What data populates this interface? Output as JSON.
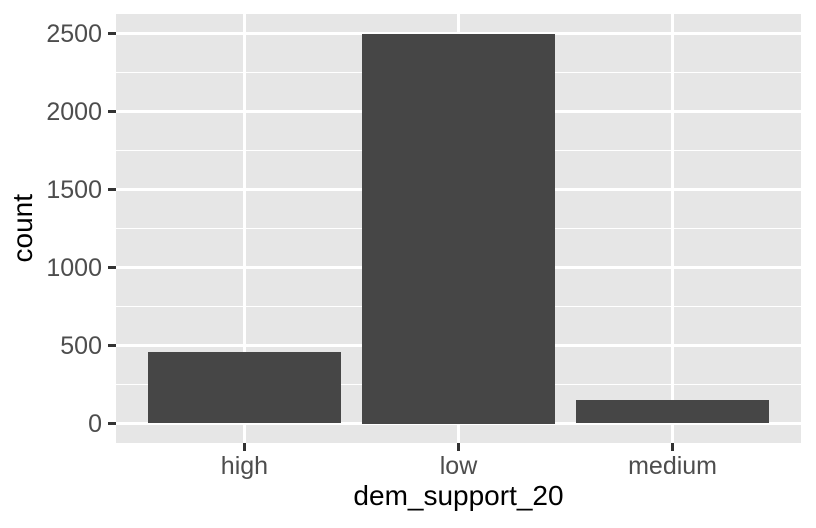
{
  "chart_data": {
    "type": "bar",
    "title": "",
    "categories": [
      "high",
      "low",
      "medium"
    ],
    "values": [
      460,
      2500,
      150
    ],
    "xlabel": "dem_support_20",
    "ylabel": "count",
    "ylim": [
      0,
      2500
    ],
    "yticks": [
      0,
      500,
      1000,
      1500,
      2000,
      2500
    ],
    "ytick_labels": [
      "0",
      "500",
      "1000",
      "1500",
      "2000",
      "2500"
    ],
    "minor_gridline_values": [
      250,
      750,
      1250,
      1750,
      2250
    ],
    "grid": "white major and minor horizontal gridlines, white vertical gridlines at category centers, on grey panel",
    "legend_position": "none",
    "bar_fill": "#464646",
    "panel_background": "#E6E6E6",
    "figure_background": "#FFFFFF",
    "gridline_color": "#FFFFFF",
    "tick_label_color": "#4D4D4D",
    "axis_title_color": "#000000",
    "tick_mark_color": "#333333"
  }
}
